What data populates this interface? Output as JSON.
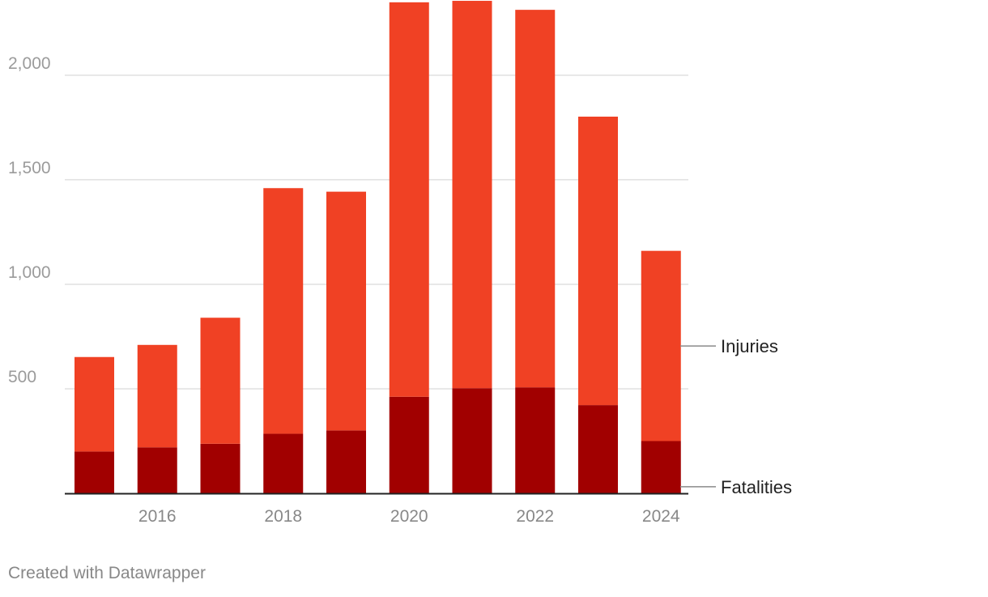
{
  "chart_data": {
    "type": "bar",
    "stacked": true,
    "title": "",
    "xlabel": "",
    "ylabel": "",
    "categories": [
      "2015",
      "2016",
      "2017",
      "2018",
      "2019",
      "2020",
      "2021",
      "2022",
      "2023",
      "2024"
    ],
    "x_tick_labels": [
      "2016",
      "2018",
      "2020",
      "2022",
      "2024"
    ],
    "y_tick_labels": [
      "500",
      "1,000",
      "1,500",
      "2,000"
    ],
    "y_ticks": [
      500,
      1000,
      1500,
      2000
    ],
    "ylim": [
      0,
      2360
    ],
    "grid": true,
    "legend": "direct labels, right of the last bar",
    "series": [
      {
        "name": "Fatalities",
        "color": "#a10000",
        "values": [
          200,
          220,
          237,
          285,
          301,
          462,
          503,
          507,
          422,
          250
        ]
      },
      {
        "name": "Injuries",
        "color": "#f04124",
        "values": [
          452,
          490,
          603,
          1175,
          1142,
          1887,
          1853,
          1806,
          1380,
          910
        ]
      }
    ]
  },
  "footer": {
    "credit": "Created with Datawrapper"
  }
}
